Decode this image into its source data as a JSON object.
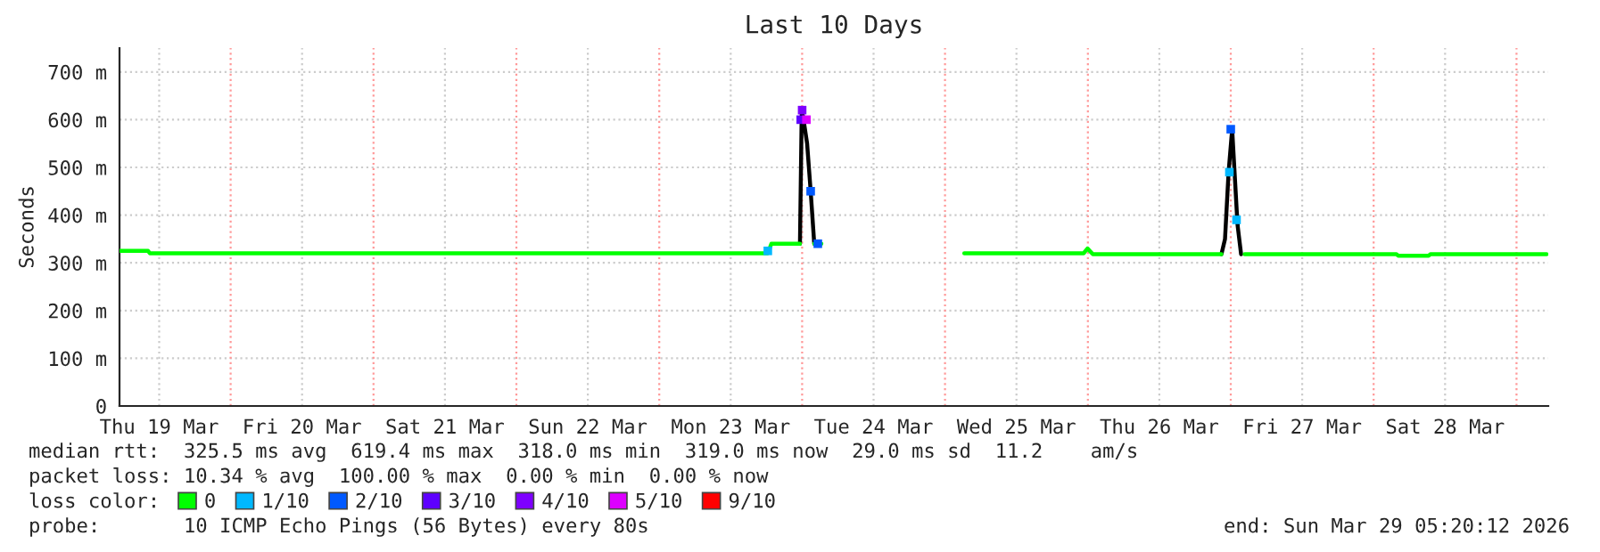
{
  "chart_data": {
    "type": "line",
    "title": "Last 10 Days",
    "ylabel": "Seconds",
    "legend_title": "loss color:",
    "legend": "bottom",
    "grid": true,
    "xlim": [
      "2026-03-19T05:20",
      "2026-03-29T05:20"
    ],
    "xticks": [
      {
        "value": "2026-03-19T12:00",
        "label": "Thu 19 Mar"
      },
      {
        "value": "2026-03-20T12:00",
        "label": "Fri 20 Mar"
      },
      {
        "value": "2026-03-21T12:00",
        "label": "Sat 21 Mar"
      },
      {
        "value": "2026-03-22T12:00",
        "label": "Sun 22 Mar"
      },
      {
        "value": "2026-03-23T12:00",
        "label": "Mon 23 Mar"
      },
      {
        "value": "2026-03-24T12:00",
        "label": "Tue 24 Mar"
      },
      {
        "value": "2026-03-25T12:00",
        "label": "Wed 25 Mar"
      },
      {
        "value": "2026-03-26T12:00",
        "label": "Thu 26 Mar"
      },
      {
        "value": "2026-03-27T12:00",
        "label": "Fri 27 Mar"
      },
      {
        "value": "2026-03-28T12:00",
        "label": "Sat 28 Mar"
      }
    ],
    "ylim": [
      0,
      750
    ],
    "yticks": [
      0,
      {
        "value": 100,
        "label": "100 m"
      },
      {
        "value": 200,
        "label": "200 m"
      },
      {
        "value": 300,
        "label": "300 m"
      },
      {
        "value": 400,
        "label": "400 m"
      },
      {
        "value": 500,
        "label": "500 m"
      },
      {
        "value": 600,
        "label": "600 m"
      },
      {
        "value": 700,
        "label": "700 m"
      }
    ],
    "ref_lines": [
      {
        "axis": "x",
        "value": "2026-03-20",
        "color": "#ff9999",
        "line_style": "dotted"
      },
      {
        "axis": "x",
        "value": "2026-03-21",
        "color": "#ff9999",
        "line_style": "dotted"
      },
      {
        "axis": "x",
        "value": "2026-03-22",
        "color": "#ff9999",
        "line_style": "dotted"
      },
      {
        "axis": "x",
        "value": "2026-03-23",
        "color": "#ff9999",
        "line_style": "dotted"
      },
      {
        "axis": "x",
        "value": "2026-03-24",
        "color": "#ff9999",
        "line_style": "dotted"
      },
      {
        "axis": "x",
        "value": "2026-03-25",
        "color": "#ff9999",
        "line_style": "dotted"
      },
      {
        "axis": "x",
        "value": "2026-03-26",
        "color": "#ff9999",
        "line_style": "dotted"
      },
      {
        "axis": "x",
        "value": "2026-03-27",
        "color": "#ff9999",
        "line_style": "dotted"
      },
      {
        "axis": "x",
        "value": "2026-03-28",
        "color": "#ff9999",
        "line_style": "dotted"
      },
      {
        "axis": "x",
        "value": "2026-03-29",
        "color": "#ff9999",
        "line_style": "dotted"
      }
    ],
    "series": [
      {
        "color": "#000000",
        "x": [
          "2026-03-23T23:38",
          "2026-03-23T23:56",
          "2026-03-24T00:14",
          "2026-03-24T00:50",
          "2026-03-24T01:26",
          "2026-03-24T02:02",
          null,
          "2026-03-26T22:26",
          "2026-03-26T23:02",
          "2026-03-26T23:38",
          "2026-03-27T00:14",
          "2026-03-27T01:08",
          "2026-03-27T01:44"
        ],
        "values": [
          340,
          620,
          600,
          550,
          450,
          340,
          null,
          318,
          350,
          490,
          580,
          380,
          318
        ]
      },
      {
        "name": "0",
        "color": "#00ff00",
        "x": [
          "2026-03-19T05:20",
          "2026-03-19T10:08",
          "2026-03-19T10:26",
          "2026-03-23T18:14",
          "2026-03-23T18:32",
          "2026-03-23T18:50",
          "2026-03-23T23:38",
          null,
          "2026-03-24T02:02",
          "2026-03-24T03:14",
          null,
          "2026-03-25T03:14",
          "2026-03-25T23:17",
          "2026-03-25T23:56",
          "2026-03-26T00:50",
          "2026-03-26T22:26",
          null,
          "2026-03-27T02:20",
          "2026-03-28T03:50",
          "2026-03-28T04:08",
          "2026-03-28T09:14",
          "2026-03-28T09:32",
          "2026-03-29T05:02"
        ],
        "values": [
          325,
          325,
          320,
          320,
          330,
          340,
          340,
          null,
          340,
          340,
          null,
          320,
          320,
          330,
          318,
          318,
          null,
          318,
          318,
          315,
          315,
          318,
          318
        ]
      },
      {
        "type": "scatter",
        "name": "1/10",
        "color": "#00b8ff",
        "marker": "square",
        "x": [
          "2026-03-23T18:14",
          "2026-03-26T23:46",
          "2026-03-27T00:58"
        ],
        "values": [
          325,
          490,
          390
        ]
      },
      {
        "type": "scatter",
        "name": "2/10",
        "color": "#0059ff",
        "marker": "square",
        "x": [
          "2026-03-24T01:26",
          "2026-03-24T02:38",
          "2026-03-27T00:00"
        ],
        "values": [
          450,
          340,
          580
        ]
      },
      {
        "type": "scatter",
        "name": "3/10",
        "color": "#5e00ff",
        "marker": "square",
        "x": [
          "2026-03-23T23:46"
        ],
        "values": [
          600
        ]
      },
      {
        "type": "scatter",
        "name": "4/10",
        "color": "#7e00ff",
        "marker": "square",
        "x": [
          "2026-03-24T00:00"
        ],
        "values": [
          620
        ]
      },
      {
        "type": "scatter",
        "name": "5/10",
        "color": "#dd00ff",
        "marker": "square",
        "x": [
          "2026-03-24T00:43"
        ],
        "values": [
          600
        ]
      },
      {
        "type": "scatter",
        "name": "9/10",
        "color": "#ff0000",
        "marker": "square"
      }
    ],
    "annotations": [
      "median rtt:  325.5 ms avg  619.4 ms max  318.0 ms min  319.0 ms now  29.0 ms sd  11.2    am/s",
      "packet loss: 10.34 % avg  100.00 % max  0.00 % min  0.00 % now",
      "probe:       10 ICMP Echo Pings (56 Bytes) every 80s",
      "end: Sun Mar 29 05:20:12 2026"
    ]
  }
}
